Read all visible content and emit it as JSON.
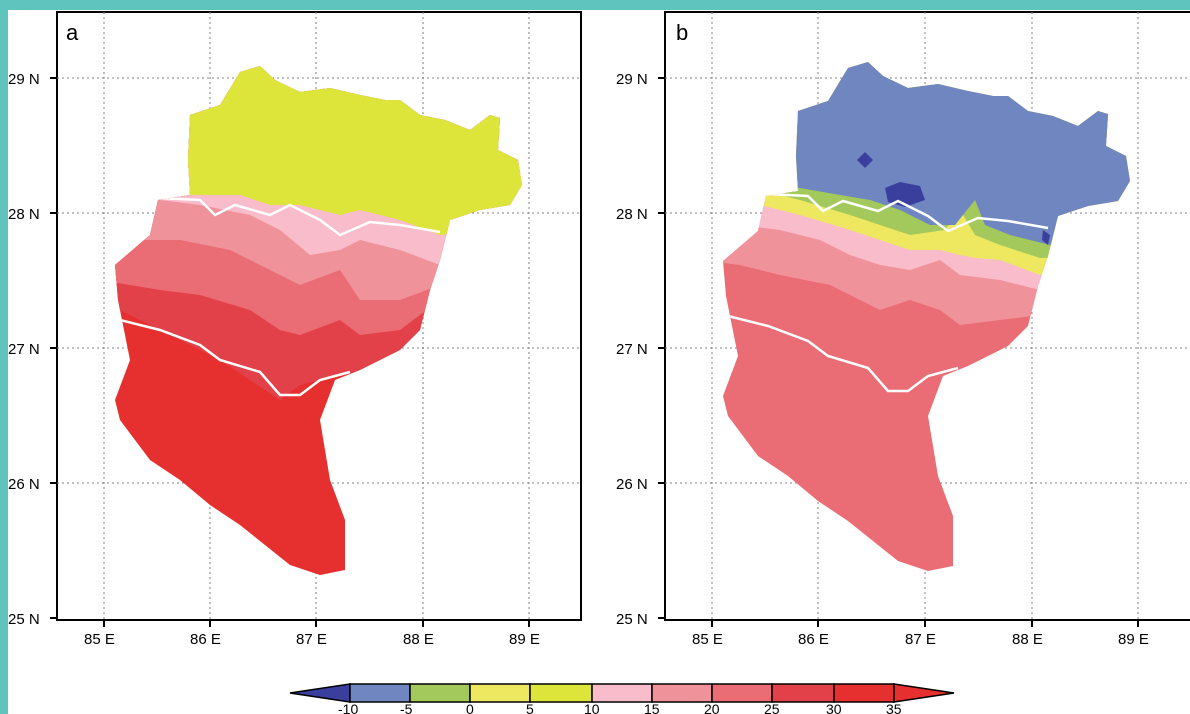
{
  "panels": [
    {
      "label": "a",
      "lat_ticks": [
        "29 N",
        "28 N",
        "27 N",
        "26 N",
        "25 N"
      ],
      "lon_ticks": [
        "85 E",
        "86 E",
        "87 E",
        "88 E",
        "89 E"
      ]
    },
    {
      "label": "b",
      "lat_ticks": [
        "29 N",
        "28 N",
        "27 N",
        "26 N",
        "25 N"
      ],
      "lon_ticks": [
        "85 E",
        "86 E",
        "87 E",
        "88 E",
        "89 E"
      ]
    }
  ],
  "colorbar": {
    "labels": [
      "-10",
      "-5",
      "0",
      "5",
      "10",
      "15",
      "20",
      "25",
      "30",
      "35"
    ],
    "colors": [
      "#3a3f9e",
      "#6f86c0",
      "#a3c95c",
      "#eee860",
      "#dde43a",
      "#f8bccb",
      "#f0929a",
      "#ea6c74",
      "#e3414a",
      "#e5302f"
    ]
  },
  "colors": {
    "frame_border": "#5fc4be",
    "boundary_line": "#ffffff",
    "grid_line": "#808080"
  }
}
